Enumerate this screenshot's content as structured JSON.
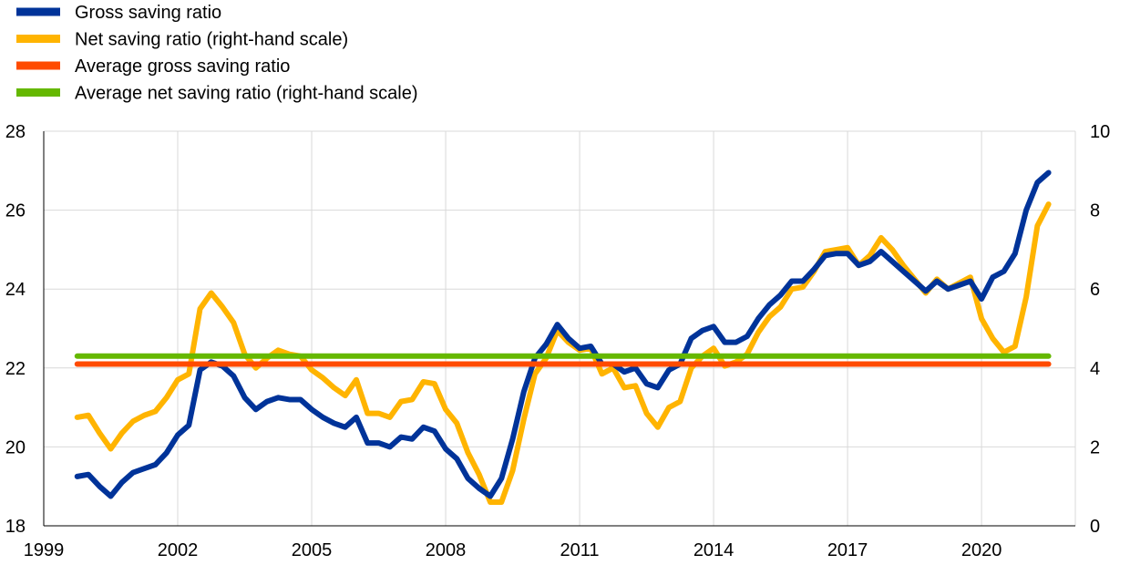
{
  "chart_data": {
    "type": "line",
    "title": "",
    "xlabel": "",
    "ylabel": "",
    "x_axis": {
      "min": 1999,
      "max": 2022.1,
      "ticks": [
        1999,
        2002,
        2005,
        2008,
        2011,
        2014,
        2017,
        2020
      ],
      "tick_labels": [
        "1999",
        "2002",
        "2005",
        "2008",
        "2011",
        "2014",
        "2017",
        "2020"
      ]
    },
    "y_left": {
      "min": 18,
      "max": 28,
      "ticks": [
        18,
        20,
        22,
        24,
        26,
        28
      ],
      "tick_labels": [
        "18",
        "20",
        "22",
        "24",
        "26",
        "28"
      ]
    },
    "y_right": {
      "min": 0,
      "max": 10,
      "ticks": [
        0,
        2,
        4,
        6,
        8,
        10
      ],
      "tick_labels": [
        "0",
        "2",
        "4",
        "6",
        "8",
        "10"
      ]
    },
    "grid": true,
    "legend_position": "top-left",
    "series": [
      {
        "name": "Gross saving ratio",
        "axis": "left",
        "color": "#003399",
        "x": [
          1999.75,
          2000.0,
          2000.25,
          2000.5,
          2000.75,
          2001.0,
          2001.25,
          2001.5,
          2001.75,
          2002.0,
          2002.25,
          2002.5,
          2002.75,
          2003.0,
          2003.25,
          2003.5,
          2003.75,
          2004.0,
          2004.25,
          2004.5,
          2004.75,
          2005.0,
          2005.25,
          2005.5,
          2005.75,
          2006.0,
          2006.25,
          2006.5,
          2006.75,
          2007.0,
          2007.25,
          2007.5,
          2007.75,
          2008.0,
          2008.25,
          2008.5,
          2008.75,
          2009.0,
          2009.25,
          2009.5,
          2009.75,
          2010.0,
          2010.25,
          2010.5,
          2010.75,
          2011.0,
          2011.25,
          2011.5,
          2011.75,
          2012.0,
          2012.25,
          2012.5,
          2012.75,
          2013.0,
          2013.25,
          2013.5,
          2013.75,
          2014.0,
          2014.25,
          2014.5,
          2014.75,
          2015.0,
          2015.25,
          2015.5,
          2015.75,
          2016.0,
          2016.25,
          2016.5,
          2016.75,
          2017.0,
          2017.25,
          2017.5,
          2017.75,
          2018.0,
          2018.25,
          2018.5,
          2018.75,
          2019.0,
          2019.25,
          2019.5,
          2019.75,
          2020.0,
          2020.25,
          2020.5,
          2020.75,
          2021.0,
          2021.25,
          2021.5
        ],
        "values": [
          19.25,
          19.3,
          19.0,
          18.75,
          19.1,
          19.35,
          19.45,
          19.55,
          19.85,
          20.3,
          20.55,
          21.95,
          22.15,
          22.05,
          21.8,
          21.25,
          20.95,
          21.15,
          21.25,
          21.2,
          21.2,
          20.95,
          20.75,
          20.6,
          20.5,
          20.75,
          20.1,
          20.1,
          20.0,
          20.25,
          20.2,
          20.5,
          20.4,
          19.95,
          19.7,
          19.2,
          18.95,
          18.75,
          19.2,
          20.2,
          21.4,
          22.25,
          22.6,
          23.1,
          22.75,
          22.5,
          22.55,
          22.1,
          22.1,
          21.9,
          22.0,
          21.6,
          21.5,
          21.95,
          22.1,
          22.75,
          22.95,
          23.05,
          22.65,
          22.65,
          22.8,
          23.25,
          23.6,
          23.85,
          24.2,
          24.2,
          24.5,
          24.85,
          24.9,
          24.9,
          24.6,
          24.7,
          24.95,
          24.7,
          24.45,
          24.2,
          23.95,
          24.2,
          24.0,
          24.1,
          24.2,
          23.75,
          24.3,
          24.45,
          24.9,
          26.0,
          26.7,
          26.95
        ]
      },
      {
        "name": "Net saving ratio (right-hand scale)",
        "axis": "right",
        "color": "#FFB400",
        "x": [
          1999.75,
          2000.0,
          2000.25,
          2000.5,
          2000.75,
          2001.0,
          2001.25,
          2001.5,
          2001.75,
          2002.0,
          2002.25,
          2002.5,
          2002.75,
          2003.0,
          2003.25,
          2003.5,
          2003.75,
          2004.0,
          2004.25,
          2004.5,
          2004.75,
          2005.0,
          2005.25,
          2005.5,
          2005.75,
          2006.0,
          2006.25,
          2006.5,
          2006.75,
          2007.0,
          2007.25,
          2007.5,
          2007.75,
          2008.0,
          2008.25,
          2008.5,
          2008.75,
          2009.0,
          2009.25,
          2009.5,
          2009.75,
          2010.0,
          2010.25,
          2010.5,
          2010.75,
          2011.0,
          2011.25,
          2011.5,
          2011.75,
          2012.0,
          2012.25,
          2012.5,
          2012.75,
          2013.0,
          2013.25,
          2013.5,
          2013.75,
          2014.0,
          2014.25,
          2014.5,
          2014.75,
          2015.0,
          2015.25,
          2015.5,
          2015.75,
          2016.0,
          2016.25,
          2016.5,
          2016.75,
          2017.0,
          2017.25,
          2017.5,
          2017.75,
          2018.0,
          2018.25,
          2018.5,
          2018.75,
          2019.0,
          2019.25,
          2019.5,
          2019.75,
          2020.0,
          2020.25,
          2020.5,
          2020.75,
          2021.0,
          2021.25,
          2021.5
        ],
        "values": [
          2.75,
          2.8,
          2.35,
          1.95,
          2.35,
          2.65,
          2.8,
          2.9,
          3.25,
          3.7,
          3.85,
          5.5,
          5.9,
          5.55,
          5.15,
          4.35,
          4.0,
          4.25,
          4.45,
          4.35,
          4.3,
          3.95,
          3.75,
          3.5,
          3.3,
          3.7,
          2.85,
          2.85,
          2.75,
          3.15,
          3.2,
          3.65,
          3.6,
          2.95,
          2.6,
          1.85,
          1.3,
          0.6,
          0.6,
          1.4,
          2.7,
          3.85,
          4.25,
          4.95,
          4.65,
          4.45,
          4.5,
          3.85,
          4.0,
          3.5,
          3.55,
          2.85,
          2.5,
          3.0,
          3.15,
          4.0,
          4.3,
          4.5,
          4.05,
          4.15,
          4.35,
          4.9,
          5.3,
          5.55,
          6.0,
          6.05,
          6.45,
          6.95,
          7.0,
          7.05,
          6.6,
          6.85,
          7.3,
          7.0,
          6.6,
          6.25,
          5.9,
          6.25,
          6.0,
          6.15,
          6.3,
          5.25,
          4.75,
          4.4,
          4.55,
          5.8,
          7.6,
          8.15
        ]
      },
      {
        "name": "Average gross saving ratio",
        "axis": "left",
        "color": "#FF4B00",
        "x": [
          1999.75,
          2021.5
        ],
        "values": [
          22.1,
          22.1
        ]
      },
      {
        "name": "Average net saving ratio (right-hand scale)",
        "axis": "right",
        "color": "#65B800",
        "x": [
          1999.75,
          2021.5
        ],
        "values": [
          4.3,
          4.3
        ]
      }
    ]
  }
}
